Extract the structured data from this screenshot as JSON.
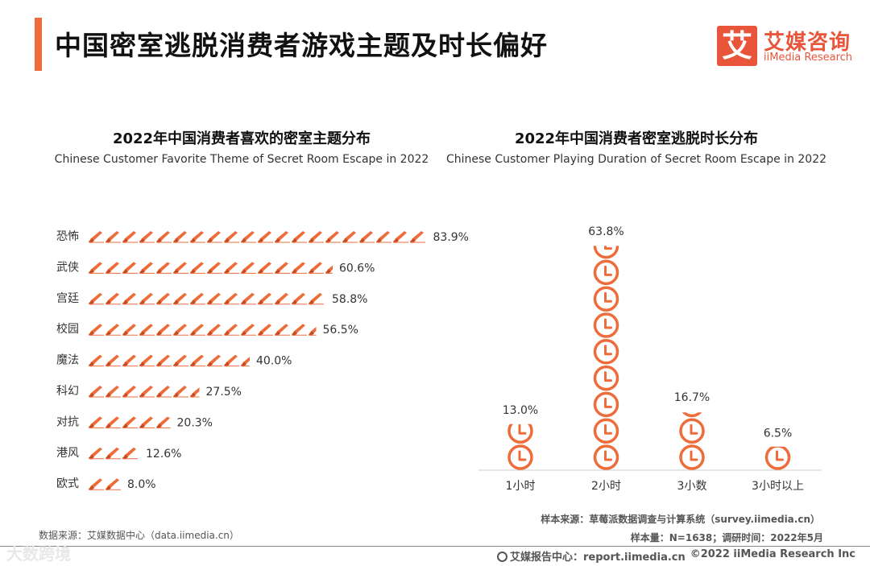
{
  "page_title": "中国密室逃脱消费者游戏主题及时长偏好",
  "logo": {
    "mark": "艾",
    "name_cn": "艾媒咨询",
    "name_en": "iiMedia Research"
  },
  "colors": {
    "accent": "#ee6c3a",
    "text": "#333333",
    "axis": "#cccccc"
  },
  "chart_data": [
    {
      "type": "bar",
      "orientation": "horizontal",
      "title": "2022年中国消费者喜欢的密室主题分布",
      "subtitle": "Chinese Customer Favorite Theme of Secret Room Escape in 2022",
      "categories": [
        "恐怖",
        "武侠",
        "宫廷",
        "校园",
        "魔法",
        "科幻",
        "对抗",
        "港风",
        "欧式"
      ],
      "values": [
        83.9,
        60.6,
        58.8,
        56.5,
        40.0,
        27.5,
        20.3,
        12.6,
        8.0
      ],
      "value_labels": [
        "83.9%",
        "60.6%",
        "58.8%",
        "56.5%",
        "40.0%",
        "27.5%",
        "20.3%",
        "12.6%",
        "8.0%"
      ],
      "unit": "%",
      "icon": "knife-icon",
      "xlim": [
        0,
        100
      ]
    },
    {
      "type": "bar",
      "orientation": "vertical",
      "title": "2022年中国消费者密室逃脱时长分布",
      "subtitle": "Chinese Customer Playing Duration of Secret Room Escape in 2022",
      "categories": [
        "1小时",
        "2小时",
        "3小数",
        "3小时以上"
      ],
      "values": [
        13.0,
        63.8,
        16.7,
        6.5
      ],
      "value_labels": [
        "13.0%",
        "63.8%",
        "16.7%",
        "6.5%"
      ],
      "unit": "%",
      "icon": "clock-icon",
      "ylim": [
        0,
        70
      ]
    }
  ],
  "notes": {
    "left_source": "数据来源：艾媒数据中心（data.iimedia.cn）",
    "sample_source": "样本来源：草莓派数据调查与计算系统（survey.iimedia.cn）",
    "sample_size": "样本量：N=1638；调研时间：2022年5月"
  },
  "footer": {
    "center": "艾媒报告中心：report.iimedia.cn",
    "right": "©2022  iiMedia Research  Inc",
    "watermark": "大数跨境"
  }
}
